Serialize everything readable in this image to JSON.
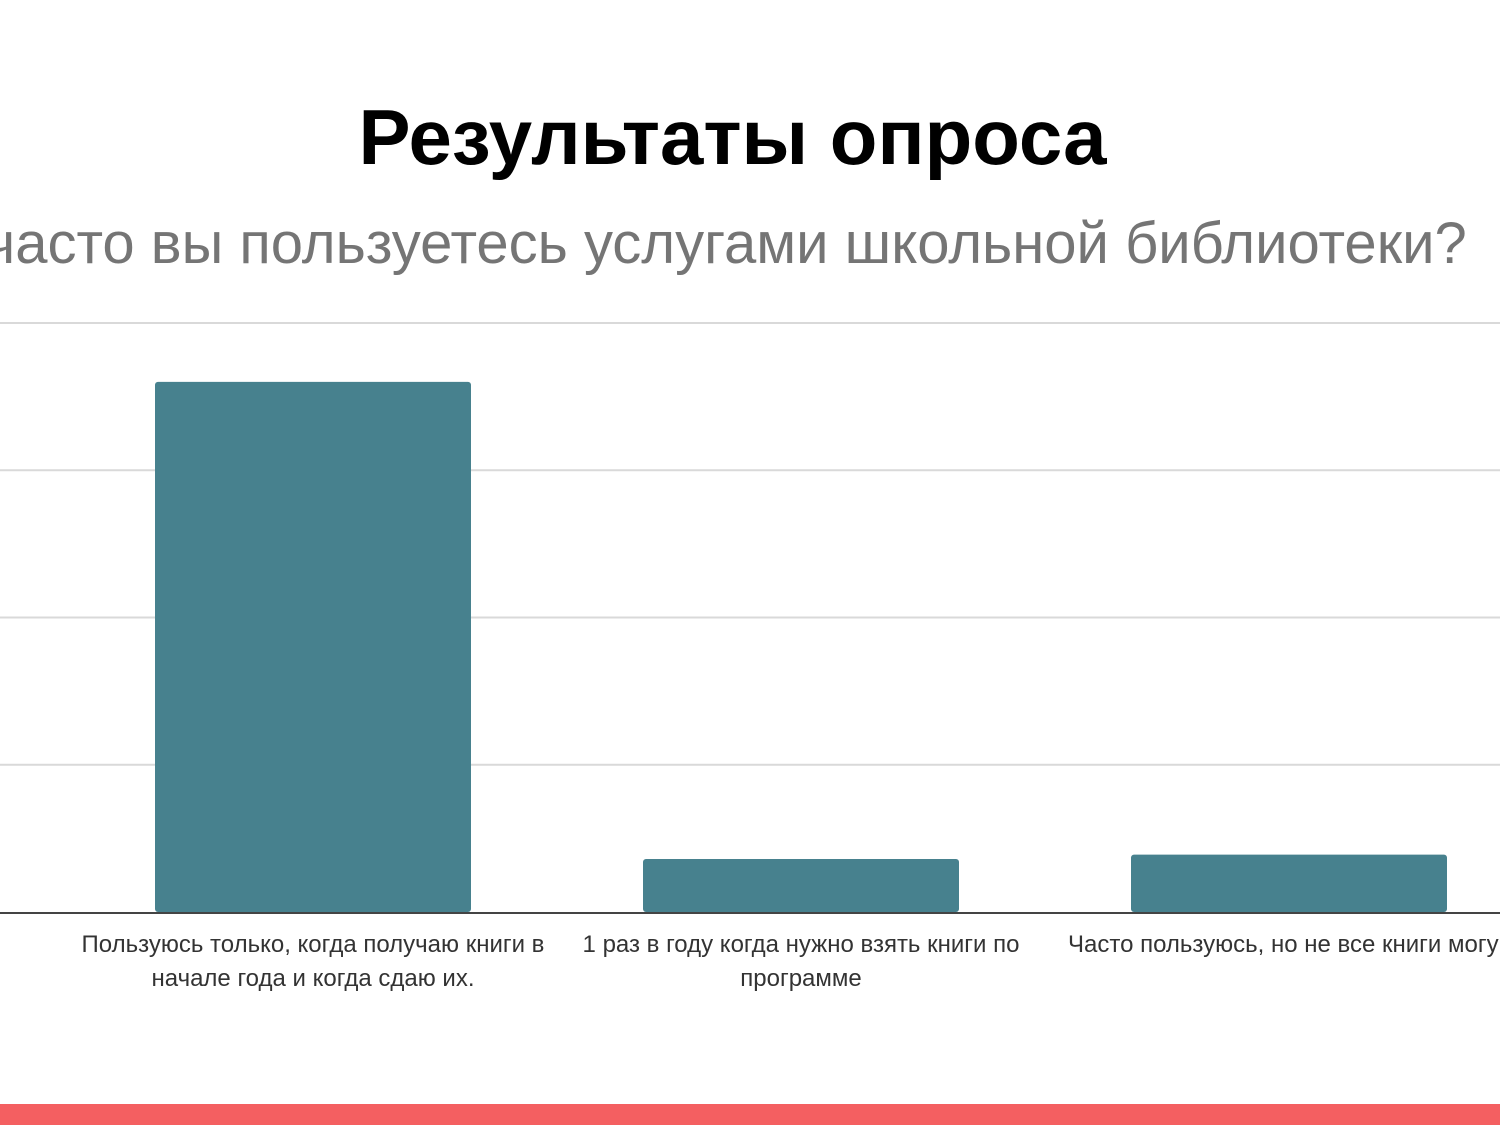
{
  "slide": {
    "title": "Результаты опроса",
    "accent_color": "#f45f61"
  },
  "chart_data": {
    "type": "bar",
    "title": "часто вы пользуетесь услугами школьной библиотеки?",
    "categories": [
      [
        "Пользуюсь только, когда получаю книги в",
        "начале года и когда сдаю их."
      ],
      [
        "1 раз в году когда нужно взять книги по",
        "программе"
      ],
      [
        "Часто пользуюсь, но не все книги могу найти"
      ]
    ],
    "values": [
      36,
      3.6,
      3.9
    ],
    "ylim": [
      0,
      40
    ],
    "gridlines": true,
    "bar_color": "#47818e",
    "grid_color": "#d9d9d9",
    "axis_color": "#444444"
  }
}
